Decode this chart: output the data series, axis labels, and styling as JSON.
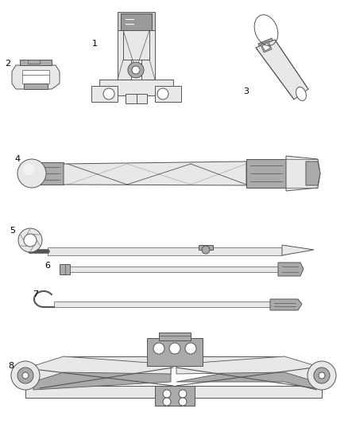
{
  "background_color": "#ffffff",
  "label_color": "#000000",
  "part_edge": "#555555",
  "part_fill": "#e8e8e8",
  "part_dark": "#aaaaaa",
  "part_darker": "#888888",
  "figure_width": 4.38,
  "figure_height": 5.33,
  "dpi": 100
}
